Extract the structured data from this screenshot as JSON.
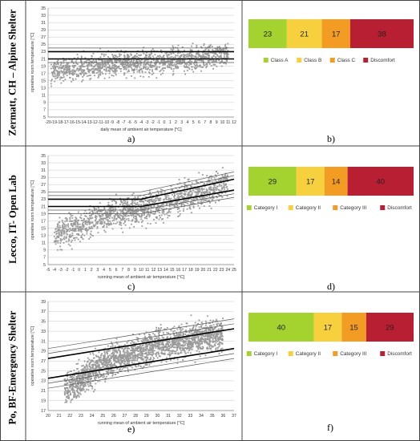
{
  "rows": [
    {
      "label": "Zermatt, CH – Alpine Shelter",
      "left_caption": "a)",
      "right_caption": "b)"
    },
    {
      "label": "Lecco, IT- Open Lab",
      "left_caption": "c)",
      "right_caption": "d)"
    },
    {
      "label": "Po, BF-Emergency Shelter",
      "left_caption": "e)",
      "right_caption": "f)"
    }
  ],
  "chart_data": [
    {
      "type": "scatter",
      "id": "a",
      "xlabel": "daily mean of ambient air temperature [°C]",
      "ylabel": "operative room temperature [°C]",
      "xlim": [
        -20,
        12
      ],
      "ylim": [
        5,
        35
      ],
      "xticks": [
        -20,
        -19,
        -18,
        -17,
        -16,
        -15,
        -14,
        -13,
        -12,
        -11,
        -10,
        -9,
        -8,
        -7,
        -6,
        -5,
        -4,
        -3,
        -2,
        -1,
        0,
        1,
        2,
        3,
        4,
        5,
        6,
        7,
        8,
        9,
        10,
        11,
        12
      ],
      "yticks": [
        5,
        7,
        9,
        11,
        13,
        15,
        17,
        19,
        21,
        23,
        25,
        27,
        29,
        31,
        33,
        35
      ],
      "xtick_labels": [
        "-20",
        "-19",
        "-18",
        "-17",
        "-16",
        "-15",
        "-14",
        "-13",
        "-12",
        "-11",
        "-10",
        "-9",
        "-8",
        "-7",
        "-6",
        "-5",
        "-4",
        "-3",
        "-2",
        "-1",
        "0",
        "1",
        "2",
        "3",
        "4",
        "5",
        "6",
        "7",
        "8",
        "9",
        "10",
        "11",
        "12"
      ],
      "ytick_labels": [
        "5",
        "7",
        "9",
        "11",
        "13",
        "15",
        "17",
        "19",
        "21",
        "23",
        "25",
        "27",
        "29",
        "31",
        "33",
        "35"
      ],
      "scatter": {
        "x_range": [
          -19.5,
          11
        ],
        "center": [
          [
            -19.5,
            17.5
          ],
          [
            -10,
            19.5
          ],
          [
            0,
            20.5
          ],
          [
            11,
            22
          ]
        ],
        "spread": 3.2,
        "count": 1400
      },
      "comfort_lines": [
        {
          "y": 23,
          "width": "thick"
        },
        {
          "y": 21,
          "width": "thick"
        },
        {
          "y": 24,
          "width": "thin"
        },
        {
          "y": 20,
          "width": "thin"
        }
      ]
    },
    {
      "type": "bar",
      "id": "b",
      "stacked": true,
      "categories": [
        "Class A",
        "Class B",
        "Class C",
        "Discomfort"
      ],
      "values": [
        23,
        21,
        17,
        38
      ],
      "colors": [
        "#a4d22e",
        "#f7d03e",
        "#f39c24",
        "#b81f33"
      ]
    },
    {
      "type": "scatter",
      "id": "c",
      "xlabel": "running mean of ambient air temperature [°C]",
      "ylabel": "operative room temperature [°C]",
      "xlim": [
        -5,
        25
      ],
      "ylim": [
        5,
        35
      ],
      "xticks": [
        -5,
        -4,
        -3,
        -2,
        -1,
        0,
        1,
        2,
        3,
        4,
        5,
        6,
        7,
        8,
        9,
        10,
        11,
        12,
        13,
        14,
        15,
        16,
        17,
        18,
        19,
        20,
        21,
        22,
        23,
        24,
        25
      ],
      "yticks": [
        5,
        7,
        9,
        11,
        13,
        15,
        17,
        19,
        21,
        23,
        25,
        27,
        29,
        31,
        33,
        35
      ],
      "xtick_labels": [
        "-5",
        "-4",
        "-3",
        "-2",
        "-1",
        "0",
        "1",
        "2",
        "3",
        "4",
        "5",
        "6",
        "7",
        "8",
        "9",
        "10",
        "11",
        "12",
        "13",
        "14",
        "15",
        "16",
        "17",
        "18",
        "19",
        "20",
        "21",
        "22",
        "23",
        "24",
        "25"
      ],
      "ytick_labels": [
        "5",
        "7",
        "9",
        "11",
        "13",
        "15",
        "17",
        "19",
        "21",
        "23",
        "25",
        "27",
        "29",
        "31",
        "33",
        "35"
      ],
      "scatter": {
        "x_range": [
          -4,
          24
        ],
        "center": [
          [
            -4,
            13
          ],
          [
            5,
            19
          ],
          [
            12,
            21
          ],
          [
            18,
            24
          ],
          [
            24,
            27
          ]
        ],
        "spread": 4.0,
        "count": 1500
      },
      "comfort_lines": [
        {
          "points": [
            [
              -5,
              23
            ],
            [
              10,
              23
            ],
            [
              25,
              28.5
            ]
          ],
          "width": "thick"
        },
        {
          "points": [
            [
              -5,
              21
            ],
            [
              10,
              21
            ],
            [
              25,
              25.5
            ]
          ],
          "width": "thick"
        },
        {
          "points": [
            [
              -5,
              24
            ],
            [
              10,
              24
            ],
            [
              25,
              29.5
            ]
          ],
          "width": "thin"
        },
        {
          "points": [
            [
              -5,
              20
            ],
            [
              10,
              20
            ],
            [
              25,
              24.5
            ]
          ],
          "width": "thin"
        },
        {
          "points": [
            [
              -5,
              25
            ],
            [
              10,
              25
            ],
            [
              25,
              30.5
            ]
          ],
          "width": "thin"
        },
        {
          "points": [
            [
              -5,
              19
            ],
            [
              10,
              19
            ],
            [
              25,
              23.5
            ]
          ],
          "width": "thin"
        }
      ]
    },
    {
      "type": "bar",
      "id": "d",
      "stacked": true,
      "categories": [
        "Category I",
        "Category II",
        "Category III",
        "Discomfort"
      ],
      "values": [
        29,
        17,
        14,
        40
      ],
      "colors": [
        "#a4d22e",
        "#f7d03e",
        "#f39c24",
        "#b81f33"
      ]
    },
    {
      "type": "scatter",
      "id": "e",
      "xlabel": "running mean of ambient air temperature [°C]",
      "ylabel": "operative room temperature [°C]",
      "xlim": [
        20,
        37
      ],
      "ylim": [
        17,
        39
      ],
      "xticks": [
        20,
        21,
        22,
        23,
        24,
        25,
        26,
        27,
        28,
        29,
        30,
        31,
        32,
        33,
        34,
        35,
        36,
        37
      ],
      "yticks": [
        17,
        19,
        21,
        23,
        25,
        27,
        29,
        31,
        33,
        35,
        37,
        39
      ],
      "xtick_labels": [
        "20",
        "21",
        "22",
        "23",
        "24",
        "25",
        "26",
        "27",
        "28",
        "29",
        "30",
        "31",
        "32",
        "33",
        "34",
        "35",
        "36",
        "37"
      ],
      "ytick_labels": [
        "17",
        "19",
        "21",
        "23",
        "25",
        "27",
        "29",
        "31",
        "33",
        "35",
        "37",
        "39"
      ],
      "scatter": {
        "x_range": [
          21.5,
          36
        ],
        "center": [
          [
            21.5,
            21
          ],
          [
            25,
            26.5
          ],
          [
            30,
            30
          ],
          [
            36,
            32.5
          ]
        ],
        "spread": 3.0,
        "count": 2200
      },
      "comfort_lines": [
        {
          "points": [
            [
              20,
              27.5
            ],
            [
              37,
              33.5
            ]
          ],
          "width": "thick"
        },
        {
          "points": [
            [
              20,
              23.5
            ],
            [
              37,
              29.5
            ]
          ],
          "width": "thick"
        },
        {
          "points": [
            [
              20,
              28.5
            ],
            [
              37,
              34.5
            ]
          ],
          "width": "thin"
        },
        {
          "points": [
            [
              20,
              22.5
            ],
            [
              37,
              28.5
            ]
          ],
          "width": "thin"
        },
        {
          "points": [
            [
              20,
              29.5
            ],
            [
              37,
              35.5
            ]
          ],
          "width": "thin"
        },
        {
          "points": [
            [
              20,
              21.5
            ],
            [
              37,
              27.5
            ]
          ],
          "width": "thin"
        }
      ]
    },
    {
      "type": "bar",
      "id": "f",
      "stacked": true,
      "categories": [
        "Category I",
        "Category II",
        "Category III",
        "Discomfort"
      ],
      "values": [
        40,
        17,
        15,
        29
      ],
      "colors": [
        "#a4d22e",
        "#f7d03e",
        "#f39c24",
        "#b81f33"
      ]
    }
  ]
}
